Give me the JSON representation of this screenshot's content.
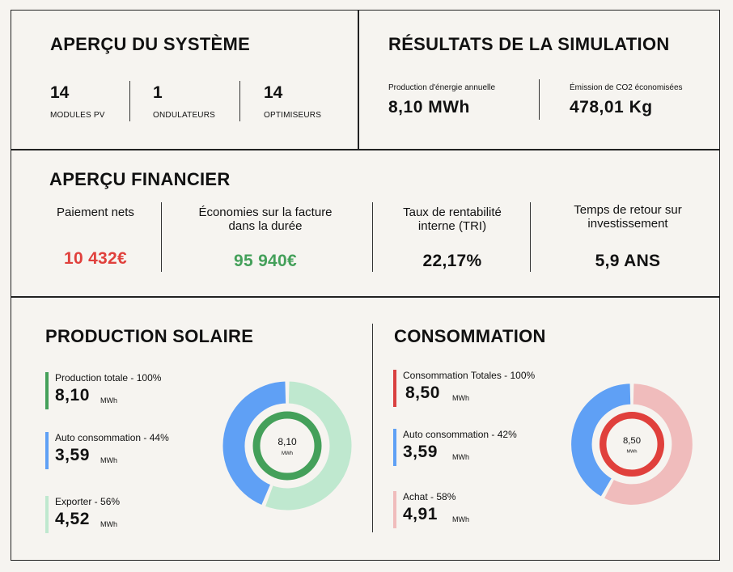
{
  "system": {
    "title": "APERÇU DU SYSTÈME",
    "stats": [
      {
        "value": "14",
        "label": "MODULES PV"
      },
      {
        "value": "1",
        "label": "ONDULATEURS"
      },
      {
        "value": "14",
        "label": "OPTIMISEURS"
      }
    ]
  },
  "simulation": {
    "title": "RÉSULTATS DE LA SIMULATION",
    "items": [
      {
        "label": "Production d'énergie annuelle",
        "value": "8,10 MWh"
      },
      {
        "label": "Émission de CO2 économisées",
        "value": "478,01 Kg"
      }
    ]
  },
  "financial": {
    "title": "APERÇU FINANCIER",
    "items": [
      {
        "label_lines": [
          "Paiement nets"
        ],
        "value": "10 432€",
        "color": "#e0403c"
      },
      {
        "label_lines": [
          "Économies sur la facture",
          "dans la durée"
        ],
        "value": "95 940€",
        "color": "#44a05a"
      },
      {
        "label_lines": [
          "Taux de rentabilité",
          "interne (TRI)"
        ],
        "value": "22,17%",
        "color": "#111111"
      },
      {
        "label_lines": [
          "Temps de retour sur",
          "investissement"
        ],
        "value": "5,9 ANS",
        "color": "#111111"
      }
    ]
  },
  "production": {
    "title": "PRODUCTION SOLAIRE",
    "legend": [
      {
        "label": "Production totale - 100%",
        "value": "8,10",
        "unit": "MWh",
        "color": "#44a05a"
      },
      {
        "label": "Auto consommation - 44%",
        "value": "3,59",
        "unit": "MWh",
        "color": "#5fa0f5"
      },
      {
        "label": "Exporter - 56%",
        "value": "4,52",
        "unit": "MWh",
        "color": "#bfe8cf"
      }
    ],
    "donut": {
      "center_value": "8,10",
      "center_unit": "MWh",
      "ring_color": "#44a05a",
      "segments": [
        {
          "share": 44,
          "color": "#5fa0f5"
        },
        {
          "share": 56,
          "color": "#bfe8cf"
        }
      ]
    }
  },
  "consumption": {
    "title": "CONSOMMATION",
    "legend": [
      {
        "label": "Consommation Totales - 100%",
        "value": "8,50",
        "unit": "MWh",
        "color": "#d94040"
      },
      {
        "label": "Auto consommation - 42%",
        "value": "3,59",
        "unit": "MWh",
        "color": "#5fa0f5"
      },
      {
        "label": "Achat - 58%",
        "value": "4,91",
        "unit": "MWh",
        "color": "#f0bcbc"
      }
    ],
    "donut": {
      "center_value": "8,50",
      "center_unit": "MWh",
      "ring_color": "#e0403c",
      "segments": [
        {
          "share": 42,
          "color": "#5fa0f5"
        },
        {
          "share": 58,
          "color": "#f0bcbc"
        }
      ]
    }
  }
}
